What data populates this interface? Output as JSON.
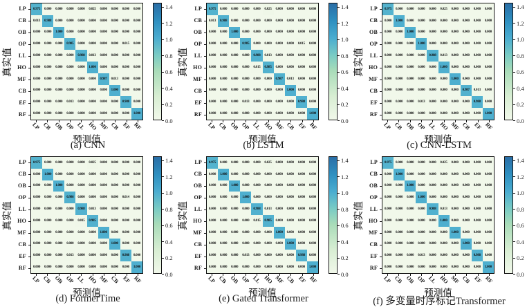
{
  "figure": {
    "background": "#ffffff",
    "text_color": "#1a1a1a",
    "diagonal_color": "#4badd0",
    "zero_cell_color": "#f1f8ea"
  },
  "colorbar": {
    "ticks": [
      0.0,
      0.2,
      0.4,
      0.6,
      0.8,
      1.0,
      1.2,
      1.4
    ],
    "vmin": 0,
    "vmax": 1.45,
    "colormap_stops": [
      [
        0.0,
        "#f1f8ea"
      ],
      [
        0.2,
        "#d8eed3"
      ],
      [
        0.42,
        "#a9dcb9"
      ],
      [
        0.55,
        "#7bccc4"
      ],
      [
        0.7,
        "#4badd0"
      ],
      [
        0.85,
        "#2e8fc0"
      ],
      [
        1.0,
        "#2a6ea6"
      ]
    ]
  },
  "chart_data": [
    {
      "type": "heatmap",
      "title": "(a) CNN",
      "xlabel": "预测值",
      "ylabel": "真实值",
      "x_categories": [
        "LP",
        "CB",
        "OB",
        "OP",
        "LL",
        "HO",
        "MF",
        "CB",
        "EF",
        "RF"
      ],
      "y_categories": [
        "LP",
        "CB",
        "OB",
        "OP",
        "LL",
        "HO",
        "MF",
        "CB",
        "EF",
        "RF"
      ],
      "matrix": [
        [
          0.975,
          0,
          0,
          0,
          0,
          0.025,
          0,
          0,
          0,
          0
        ],
        [
          0.013,
          0.988,
          0,
          0,
          0,
          0,
          0,
          0,
          0,
          0
        ],
        [
          0,
          0,
          1,
          0,
          0,
          0,
          0,
          0,
          0,
          0
        ],
        [
          0,
          0,
          0,
          0.985,
          0,
          0,
          0,
          0,
          0.015,
          0
        ],
        [
          0,
          0,
          0,
          0,
          0.988,
          0.013,
          0,
          0,
          0,
          0
        ],
        [
          0,
          0,
          0,
          0,
          0,
          1,
          0,
          0,
          0,
          0
        ],
        [
          0,
          0,
          0,
          0,
          0,
          0,
          0.987,
          0.013,
          0,
          0
        ],
        [
          0,
          0,
          0,
          0,
          0,
          0,
          0,
          1,
          0,
          0
        ],
        [
          0,
          0,
          0,
          0.013,
          0,
          0,
          0,
          0,
          0.988,
          0
        ],
        [
          0,
          0,
          0,
          0,
          0,
          0,
          0,
          0,
          0,
          1
        ]
      ]
    },
    {
      "type": "heatmap",
      "title": "(b) LSTM",
      "xlabel": "预测值",
      "ylabel": "真实值",
      "x_categories": [
        "LP",
        "CB",
        "OB",
        "OP",
        "LL",
        "HO",
        "MF",
        "CB",
        "EF",
        "RF"
      ],
      "y_categories": [
        "LP",
        "CB",
        "OB",
        "OP",
        "LL",
        "HO",
        "MF",
        "CB",
        "EF",
        "RF"
      ],
      "matrix": [
        [
          0.975,
          0,
          0,
          0,
          0,
          0.025,
          0,
          0,
          0,
          0
        ],
        [
          0.013,
          0.988,
          0,
          0,
          0,
          0,
          0,
          0,
          0,
          0
        ],
        [
          0,
          0,
          1,
          0,
          0,
          0,
          0,
          0,
          0,
          0
        ],
        [
          0,
          0,
          0,
          0.985,
          0,
          0,
          0,
          0,
          0.015,
          0
        ],
        [
          0,
          0,
          0,
          0,
          0.988,
          0.013,
          0,
          0,
          0,
          0
        ],
        [
          0,
          0,
          0,
          0,
          0.015,
          0.985,
          0,
          0,
          0,
          0
        ],
        [
          0,
          0,
          0,
          0,
          0,
          0,
          0.987,
          0.013,
          0,
          0
        ],
        [
          0,
          0,
          0,
          0,
          0,
          0,
          0,
          1,
          0,
          0
        ],
        [
          0,
          0,
          0,
          0.013,
          0,
          0,
          0,
          0,
          0.988,
          0
        ],
        [
          0,
          0,
          0,
          0,
          0,
          0,
          0,
          0,
          0,
          1
        ]
      ]
    },
    {
      "type": "heatmap",
      "title": "(c) CNN-LSTM",
      "xlabel": "预测值",
      "ylabel": "真实值",
      "x_categories": [
        "LP",
        "CB",
        "OB",
        "OP",
        "LL",
        "HO",
        "MF",
        "CB",
        "EF",
        "RF"
      ],
      "y_categories": [
        "LP",
        "CB",
        "OB",
        "OP",
        "LL",
        "HO",
        "MF",
        "CB",
        "EF",
        "RF"
      ],
      "matrix": [
        [
          0.975,
          0,
          0,
          0,
          0,
          0.025,
          0,
          0,
          0,
          0
        ],
        [
          0,
          1,
          0,
          0,
          0,
          0,
          0,
          0,
          0,
          0
        ],
        [
          0,
          0,
          1,
          0,
          0,
          0,
          0,
          0,
          0,
          0
        ],
        [
          0,
          0,
          0,
          1,
          0,
          0,
          0,
          0,
          0,
          0
        ],
        [
          0,
          0,
          0,
          0,
          0.988,
          0.013,
          0,
          0,
          0,
          0
        ],
        [
          0,
          0,
          0,
          0,
          0,
          1,
          0,
          0,
          0,
          0
        ],
        [
          0,
          0,
          0,
          0,
          0,
          0,
          1,
          0,
          0,
          0
        ],
        [
          0,
          0,
          0,
          0,
          0,
          0,
          0,
          0.987,
          0.013,
          0
        ],
        [
          0,
          0,
          0,
          0.013,
          0,
          0,
          0,
          0,
          0.988,
          0
        ],
        [
          0,
          0,
          0,
          0,
          0,
          0,
          0,
          0,
          0,
          1
        ]
      ]
    },
    {
      "type": "heatmap",
      "title": "(d) FormerTime",
      "xlabel": "预测值",
      "ylabel": "真实值",
      "x_categories": [
        "LP",
        "CB",
        "OB",
        "OP",
        "LL",
        "HO",
        "MF",
        "CB",
        "EF",
        "RF"
      ],
      "y_categories": [
        "LP",
        "CB",
        "OB",
        "OP",
        "LL",
        "HO",
        "MF",
        "CB",
        "EF",
        "RF"
      ],
      "matrix": [
        [
          0.975,
          0,
          0,
          0,
          0,
          0.025,
          0,
          0,
          0,
          0
        ],
        [
          0,
          1,
          0,
          0,
          0,
          0,
          0,
          0,
          0,
          0
        ],
        [
          0,
          0,
          1,
          0,
          0,
          0,
          0,
          0,
          0,
          0
        ],
        [
          0,
          0,
          0,
          0.986,
          0,
          0,
          0,
          0,
          0.014,
          0
        ],
        [
          0,
          0,
          0,
          0,
          0.988,
          0.013,
          0,
          0,
          0,
          0
        ],
        [
          0,
          0,
          0,
          0,
          0.015,
          0.985,
          0,
          0,
          0,
          0
        ],
        [
          0,
          0,
          0,
          0,
          0,
          0,
          1,
          0,
          0,
          0
        ],
        [
          0,
          0,
          0,
          0,
          0,
          0,
          0,
          1,
          0,
          0
        ],
        [
          0,
          0,
          0,
          0.013,
          0,
          0,
          0,
          0,
          0.988,
          0
        ],
        [
          0,
          0,
          0,
          0,
          0,
          0,
          0,
          0,
          0,
          1
        ]
      ]
    },
    {
      "type": "heatmap",
      "title": "(e) Gated Transformer",
      "xlabel": "预测值",
      "ylabel": "真实值",
      "x_categories": [
        "LP",
        "CB",
        "OB",
        "OP",
        "LL",
        "HO",
        "MF",
        "CB",
        "EF",
        "RF"
      ],
      "y_categories": [
        "LP",
        "CB",
        "OB",
        "OP",
        "LL",
        "HO",
        "MF",
        "CB",
        "EF",
        "RF"
      ],
      "matrix": [
        [
          0.975,
          0,
          0,
          0,
          0,
          0.025,
          0,
          0,
          0,
          0
        ],
        [
          0,
          1,
          0,
          0,
          0,
          0,
          0,
          0,
          0,
          0
        ],
        [
          0,
          0,
          1,
          0,
          0,
          0,
          0,
          0,
          0,
          0
        ],
        [
          0,
          0,
          0,
          1,
          0,
          0,
          0,
          0,
          0,
          0
        ],
        [
          0,
          0,
          0,
          0,
          0.988,
          0.013,
          0,
          0,
          0,
          0
        ],
        [
          0,
          0,
          0,
          0,
          0.015,
          0.985,
          0,
          0,
          0,
          0
        ],
        [
          0,
          0,
          0,
          0,
          0,
          0,
          1,
          0,
          0,
          0
        ],
        [
          0,
          0,
          0,
          0,
          0,
          0,
          0,
          1,
          0,
          0
        ],
        [
          0,
          0,
          0,
          0.013,
          0,
          0,
          0,
          0,
          0.988,
          0
        ],
        [
          0,
          0,
          0,
          0,
          0,
          0,
          0,
          0,
          0,
          1
        ]
      ]
    },
    {
      "type": "heatmap",
      "title": "(f) 多变量时序标记Transformer",
      "xlabel": "预测值",
      "ylabel": "真实值",
      "x_categories": [
        "LP",
        "CB",
        "OB",
        "OP",
        "LL",
        "HO",
        "MF",
        "CB",
        "EF",
        "RF"
      ],
      "y_categories": [
        "LP",
        "CB",
        "OB",
        "OP",
        "LL",
        "HO",
        "MF",
        "CB",
        "EF",
        "RF"
      ],
      "matrix": [
        [
          0.975,
          0,
          0,
          0,
          0,
          0.025,
          0,
          0,
          0,
          0
        ],
        [
          0,
          1,
          0,
          0,
          0,
          0,
          0,
          0,
          0,
          0
        ],
        [
          0,
          0,
          1,
          0,
          0,
          0,
          0,
          0,
          0,
          0
        ],
        [
          0,
          0,
          0,
          1,
          0,
          0,
          0,
          0,
          0,
          0
        ],
        [
          0,
          0,
          0,
          0,
          0.988,
          0.013,
          0,
          0,
          0,
          0
        ],
        [
          0,
          0,
          0,
          0,
          0,
          1,
          0,
          0,
          0,
          0
        ],
        [
          0,
          0,
          0,
          0,
          0,
          0,
          1,
          0,
          0,
          0
        ],
        [
          0,
          0,
          0,
          0,
          0,
          0,
          0,
          1,
          0,
          0
        ],
        [
          0,
          0,
          0,
          0.013,
          0,
          0,
          0,
          0,
          0.988,
          0
        ],
        [
          0,
          0,
          0,
          0,
          0,
          0,
          0,
          0,
          0,
          1
        ]
      ]
    }
  ]
}
